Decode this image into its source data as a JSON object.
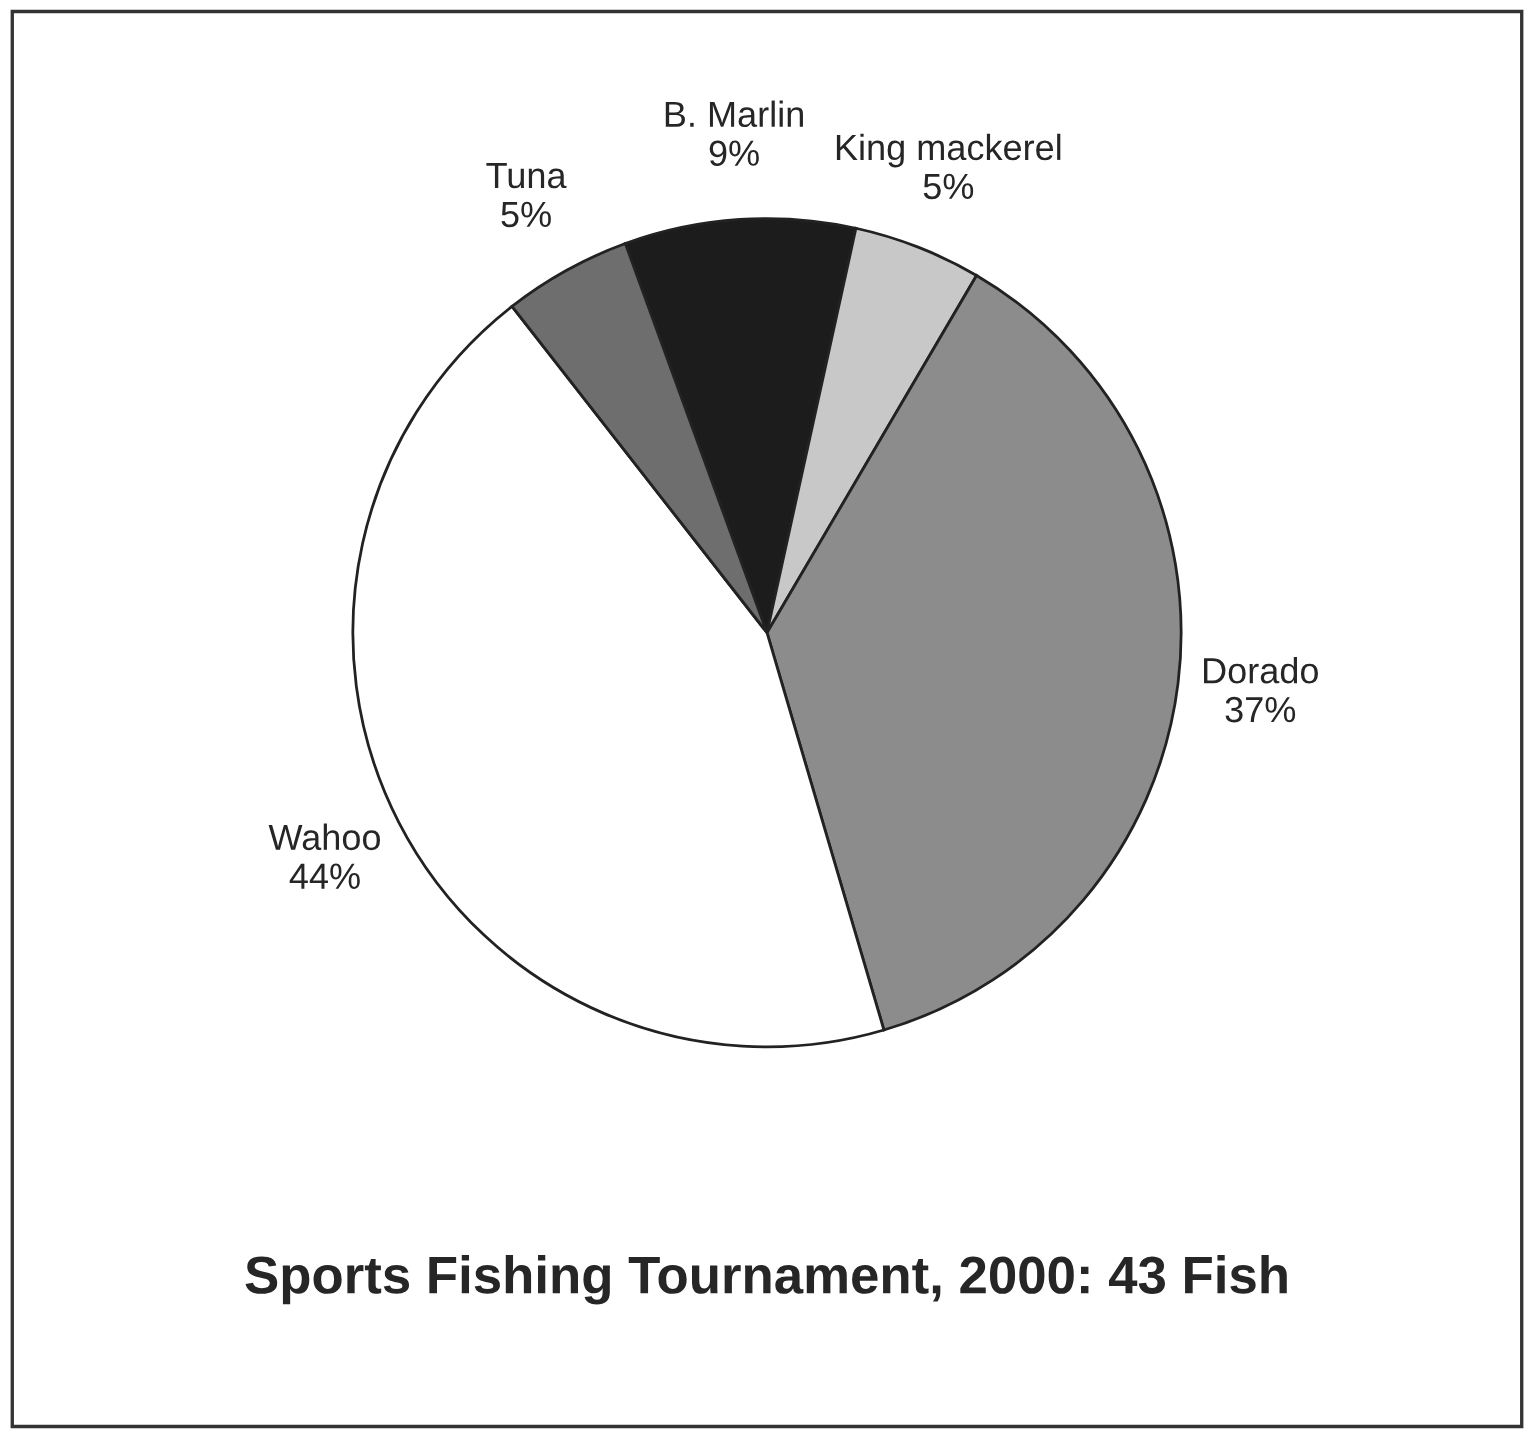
{
  "chart_data": {
    "type": "pie",
    "title": "Sports Fishing Tournament, 2000: 43 Fish",
    "categories": [
      "B. Marlin",
      "King mackerel",
      "Dorado",
      "Wahoo",
      "Tuna"
    ],
    "values": [
      9,
      5,
      37,
      44,
      5
    ],
    "value_labels": [
      "9%",
      "5%",
      "37%",
      "44%",
      "5%"
    ],
    "colors": [
      "#1c1c1c",
      "#c8c8c8",
      "#8c8c8c",
      "#ffffff",
      "#6e6e6e"
    ],
    "legend": false
  }
}
